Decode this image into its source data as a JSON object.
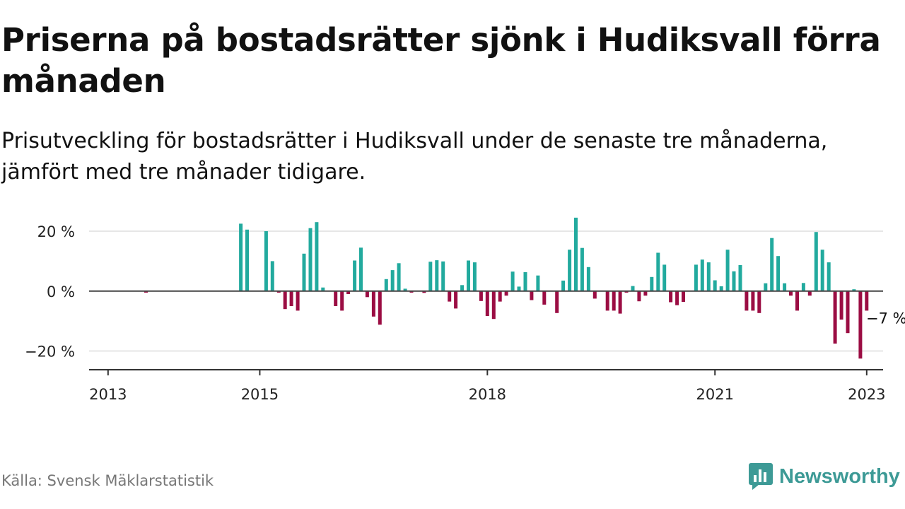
{
  "title": "Priserna på bostadsrätter sjönk i Hudiksvall förra månaden",
  "subtitle": "Prisutveckling för bostadsrätter i Hudiksvall under de senaste tre månaderna, jämfört med tre månader tidigare.",
  "source": "Källa: Svensk Mäklarstatistik",
  "brand": {
    "name": "Newsworthy",
    "logo_icon": "bar-chart-speech-bubble-icon"
  },
  "colors": {
    "positive": "#22aa9e",
    "negative": "#9b0d43",
    "grid": "#dddddd",
    "zero_line": "#444444",
    "axis": "#333333",
    "brand": "#3d9a96"
  },
  "chart_data": {
    "type": "bar",
    "title": "",
    "xlabel": "",
    "ylabel": "",
    "ylim": [
      -26,
      24
    ],
    "y_ticks": [
      {
        "value": 20,
        "label": "20 %"
      },
      {
        "value": 0,
        "label": "0 %"
      },
      {
        "value": -20,
        "label": "−20 %"
      }
    ],
    "x_ticks": [
      "2013",
      "2015",
      "2018",
      "2021",
      "2023"
    ],
    "grid": true,
    "annotation": {
      "text": "−7 %",
      "date": "2023-01",
      "value": -7
    },
    "series": [
      {
        "name": "",
        "points": [
          [
            "2013-07",
            -0.5
          ],
          [
            "2014-10",
            22.5
          ],
          [
            "2014-11",
            20.5
          ],
          [
            "2015-02",
            20
          ],
          [
            "2015-03",
            10
          ],
          [
            "2015-04",
            -0.5
          ],
          [
            "2015-05",
            -6
          ],
          [
            "2015-06",
            -5
          ],
          [
            "2015-07",
            -6.5
          ],
          [
            "2015-08",
            12.5
          ],
          [
            "2015-09",
            21
          ],
          [
            "2015-10",
            23
          ],
          [
            "2015-11",
            1.2
          ],
          [
            "2016-01",
            -5
          ],
          [
            "2016-02",
            -6.5
          ],
          [
            "2016-03",
            -1
          ],
          [
            "2016-04",
            10.2
          ],
          [
            "2016-05",
            14.5
          ],
          [
            "2016-06",
            -2
          ],
          [
            "2016-07",
            -8.5
          ],
          [
            "2016-08",
            -11.2
          ],
          [
            "2016-09",
            4
          ],
          [
            "2016-10",
            7
          ],
          [
            "2016-11",
            9.3
          ],
          [
            "2016-12",
            0.8
          ],
          [
            "2017-01",
            -0.5
          ],
          [
            "2017-03",
            -0.6
          ],
          [
            "2017-04",
            9.8
          ],
          [
            "2017-05",
            10.3
          ],
          [
            "2017-06",
            9.9
          ],
          [
            "2017-07",
            -3.5
          ],
          [
            "2017-08",
            -5.8
          ],
          [
            "2017-09",
            2
          ],
          [
            "2017-10",
            10.2
          ],
          [
            "2017-11",
            9.6
          ],
          [
            "2017-12",
            -3.3
          ],
          [
            "2018-01",
            -8.3
          ],
          [
            "2018-02",
            -9.3
          ],
          [
            "2018-03",
            -3.5
          ],
          [
            "2018-04",
            -1.5
          ],
          [
            "2018-05",
            6.5
          ],
          [
            "2018-06",
            1.5
          ],
          [
            "2018-07",
            6.3
          ],
          [
            "2018-08",
            -3
          ],
          [
            "2018-09",
            5.2
          ],
          [
            "2018-10",
            -4.5
          ],
          [
            "2018-12",
            -7.3
          ],
          [
            "2019-01",
            3.5
          ],
          [
            "2019-02",
            13.8
          ],
          [
            "2019-03",
            24.5
          ],
          [
            "2019-04",
            14.4
          ],
          [
            "2019-05",
            8
          ],
          [
            "2019-06",
            -2.5
          ],
          [
            "2019-08",
            -6.5
          ],
          [
            "2019-09",
            -6.5
          ],
          [
            "2019-10",
            -7.5
          ],
          [
            "2019-11",
            -0.5
          ],
          [
            "2019-12",
            1.7
          ],
          [
            "2020-01",
            -3.4
          ],
          [
            "2020-02",
            -1.5
          ],
          [
            "2020-03",
            4.7
          ],
          [
            "2020-04",
            12.8
          ],
          [
            "2020-05",
            8.8
          ],
          [
            "2020-06",
            -3.7
          ],
          [
            "2020-07",
            -4.7
          ],
          [
            "2020-08",
            -3.6
          ],
          [
            "2020-10",
            8.8
          ],
          [
            "2020-11",
            10.5
          ],
          [
            "2020-12",
            9.6
          ],
          [
            "2021-01",
            3.6
          ],
          [
            "2021-02",
            1.6
          ],
          [
            "2021-03",
            13.8
          ],
          [
            "2021-04",
            6.6
          ],
          [
            "2021-05",
            8.7
          ],
          [
            "2021-06",
            -6.5
          ],
          [
            "2021-07",
            -6.5
          ],
          [
            "2021-08",
            -7.3
          ],
          [
            "2021-09",
            2.6
          ],
          [
            "2021-10",
            17.7
          ],
          [
            "2021-11",
            11.7
          ],
          [
            "2021-12",
            2.6
          ],
          [
            "2022-01",
            -1.5
          ],
          [
            "2022-02",
            -6.5
          ],
          [
            "2022-03",
            2.7
          ],
          [
            "2022-04",
            -1.5
          ],
          [
            "2022-05",
            19.7
          ],
          [
            "2022-06",
            13.8
          ],
          [
            "2022-07",
            9.6
          ],
          [
            "2022-08",
            -17.5
          ],
          [
            "2022-09",
            -9.5
          ],
          [
            "2022-10",
            -14
          ],
          [
            "2022-11",
            0.6
          ],
          [
            "2022-12",
            -22.5
          ],
          [
            "2023-01",
            -6.5
          ]
        ]
      }
    ]
  }
}
